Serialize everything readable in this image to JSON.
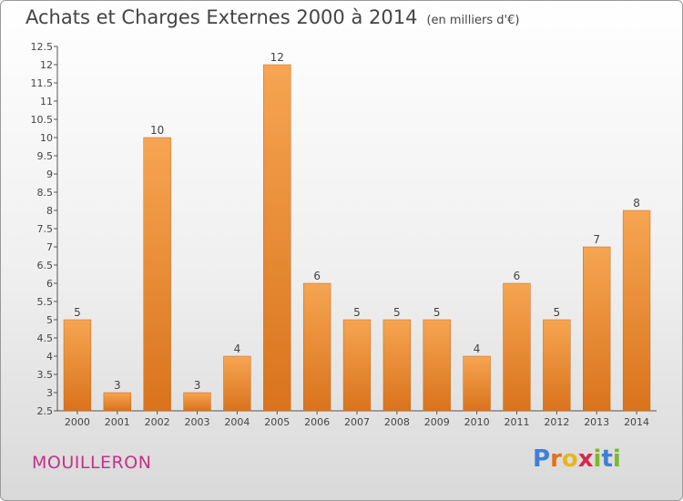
{
  "title": "Achats et Charges Externes 2000 à 2014",
  "unit": "(en milliers d'€)",
  "commune": "MOUILLERON",
  "logo": {
    "letters": [
      "P",
      "r",
      "o",
      "x",
      "i",
      "t",
      "i"
    ],
    "colors": [
      "#3f7fd6",
      "#e86f1b",
      "#e8b51b",
      "#d6284f",
      "#7ab928",
      "#3f7fd6",
      "#7ab928"
    ]
  },
  "colors": {
    "bar_top": "#f6a552",
    "bar_bottom": "#d9731c",
    "axis": "#555555",
    "grid": "#bbbbbb"
  },
  "chart_data": {
    "type": "bar",
    "categories": [
      "2000",
      "2001",
      "2002",
      "2003",
      "2004",
      "2005",
      "2006",
      "2007",
      "2008",
      "2009",
      "2010",
      "2011",
      "2012",
      "2013",
      "2014"
    ],
    "values": [
      5,
      3,
      10,
      3,
      4,
      12,
      6,
      5,
      5,
      5,
      4,
      6,
      5,
      7,
      8
    ],
    "ylim": [
      2.5,
      12.5
    ],
    "yticks": [
      2.5,
      3,
      3.5,
      4,
      4.5,
      5,
      5.5,
      6,
      6.5,
      7,
      7.5,
      8,
      8.5,
      9,
      9.5,
      10,
      10.5,
      11,
      11.5,
      12,
      12.5
    ],
    "grid": false
  }
}
